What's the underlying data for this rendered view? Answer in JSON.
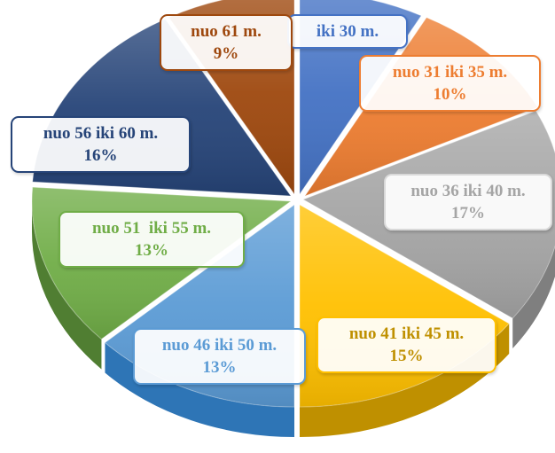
{
  "chart_data": {
    "type": "pie",
    "title": "",
    "series": [
      {
        "name": "iki 30 m.",
        "label": "iki 30 m.",
        "value": null,
        "value_text": "",
        "color": "#4472c4"
      },
      {
        "name": "nuo 31 iki 35 m.",
        "label": "nuo 31 iki 35 m.",
        "value": 10,
        "value_text": "10%",
        "color": "#ed7d31"
      },
      {
        "name": "nuo 36 iki 40 m.",
        "label": "nuo 36 iki 40 m.",
        "value": 17,
        "value_text": "17%",
        "color": "#a5a5a5"
      },
      {
        "name": "nuo 41 iki 45 m.",
        "label": "nuo 41 iki 45 m.",
        "value": 15,
        "value_text": "15%",
        "color": "#ffc000"
      },
      {
        "name": "nuo 46 iki 50 m.",
        "label": "nuo 46 iki 50 m.",
        "value": 13,
        "value_text": "13%",
        "color": "#5b9bd5"
      },
      {
        "name": "nuo 51  iki 55 m.",
        "label": "nuo 51  iki 55 m.",
        "value": 13,
        "value_text": "13%",
        "color": "#70ad47"
      },
      {
        "name": "nuo 56 iki 60 m.",
        "label": "nuo 56 iki 60 m.",
        "value": 16,
        "value_text": "16%",
        "color": "#264478"
      },
      {
        "name": "nuo 61 m.",
        "label": "nuo 61 m.",
        "value": 9,
        "value_text": "9%",
        "color": "#9e480e"
      }
    ],
    "legend": "none",
    "style": "3d-exploded"
  }
}
